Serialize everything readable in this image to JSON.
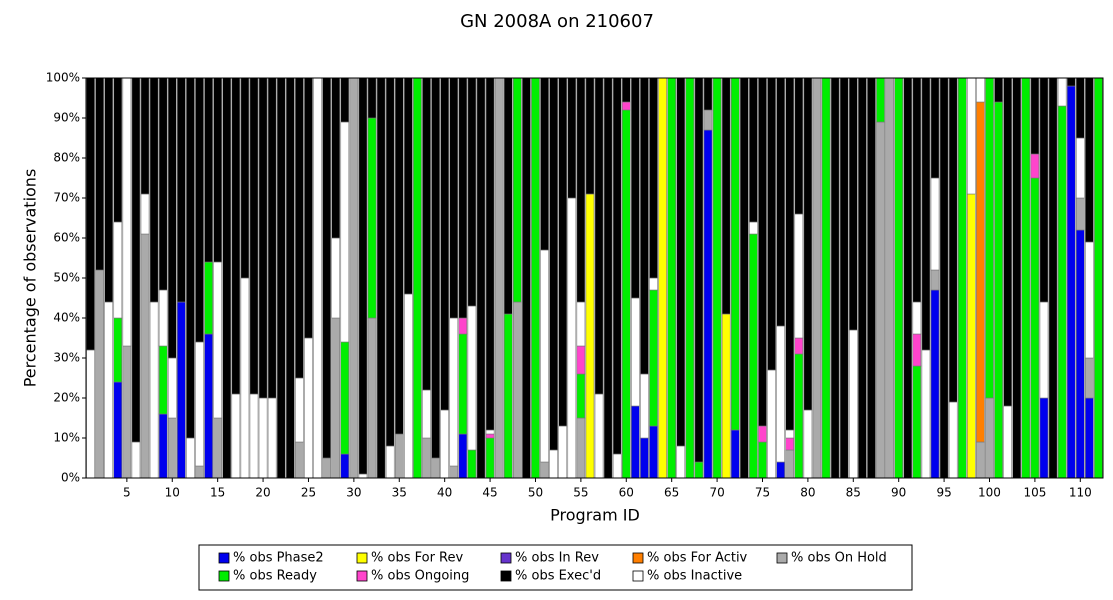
{
  "chart_data": {
    "type": "stacked_bar",
    "title": "GN 2008A on 210607",
    "x_label": "Program ID",
    "y_label": "Percentage of observations",
    "x": [
      1,
      2,
      3,
      4,
      5,
      6,
      7,
      8,
      9,
      10,
      11,
      12,
      13,
      14,
      15,
      16,
      17,
      18,
      19,
      20,
      21,
      22,
      23,
      24,
      25,
      26,
      27,
      28,
      29,
      30,
      31,
      32,
      33,
      34,
      35,
      36,
      37,
      38,
      39,
      40,
      41,
      42,
      43,
      44,
      45,
      46,
      47,
      48,
      49,
      50,
      51,
      52,
      53,
      54,
      55,
      56,
      57,
      58,
      59,
      60,
      61,
      62,
      63,
      64,
      65,
      66,
      67,
      68,
      69,
      70,
      71,
      72,
      73,
      74,
      75,
      76,
      77,
      78,
      79,
      80,
      81,
      82,
      83,
      84,
      85,
      86,
      87,
      88,
      89,
      90,
      91,
      92,
      93,
      94,
      95,
      96,
      97,
      98,
      99,
      100,
      101,
      102,
      103,
      104,
      105,
      106,
      107,
      108,
      109,
      110,
      111,
      112
    ],
    "xlim": [
      0.5,
      112.5
    ],
    "xticks": [
      5,
      10,
      15,
      20,
      25,
      30,
      35,
      40,
      45,
      50,
      55,
      60,
      65,
      70,
      75,
      80,
      85,
      90,
      95,
      100,
      105,
      110
    ],
    "ylim": [
      0,
      100
    ],
    "yticks": [
      {
        "value": 0,
        "label": "0%"
      },
      {
        "value": 10,
        "label": "10%"
      },
      {
        "value": 20,
        "label": "20%"
      },
      {
        "value": 30,
        "label": "30%"
      },
      {
        "value": 40,
        "label": "40%"
      },
      {
        "value": 50,
        "label": "50%"
      },
      {
        "value": 60,
        "label": "60%"
      },
      {
        "value": 70,
        "label": "70%"
      },
      {
        "value": 80,
        "label": "80%"
      },
      {
        "value": 90,
        "label": "90%"
      },
      {
        "value": 100,
        "label": "100%"
      }
    ],
    "series": [
      {
        "name": "% obs Phase2",
        "color": "#0000ee",
        "values": [
          0,
          0,
          0,
          24,
          0,
          0,
          0,
          0,
          16,
          0,
          44,
          0,
          0,
          36,
          0,
          0,
          0,
          0,
          0,
          0,
          0,
          0,
          0,
          0,
          0,
          0,
          0,
          0,
          6,
          0,
          0,
          0,
          0,
          0,
          0,
          0,
          0,
          0,
          0,
          0,
          0,
          11,
          0,
          0,
          0,
          0,
          0,
          0,
          0,
          0,
          0,
          0,
          0,
          0,
          0,
          0,
          0,
          0,
          0,
          0,
          18,
          10,
          13,
          0,
          0,
          0,
          0,
          0,
          87,
          0,
          0,
          12,
          0,
          0,
          0,
          0,
          4,
          0,
          0,
          0,
          0,
          0,
          0,
          0,
          0,
          0,
          0,
          0,
          0,
          0,
          0,
          0,
          0,
          47,
          0,
          0,
          0,
          0,
          0,
          0,
          0,
          0,
          0,
          0,
          0,
          20,
          0,
          0,
          98,
          62,
          20,
          0
        ]
      },
      {
        "name": "% obs Ready",
        "color": "#00ee00",
        "values": [
          0,
          0,
          0,
          16,
          0,
          0,
          0,
          0,
          17,
          0,
          0,
          0,
          0,
          18,
          0,
          0,
          0,
          0,
          0,
          0,
          0,
          0,
          0,
          0,
          0,
          0,
          0,
          0,
          28,
          0,
          0,
          50,
          0,
          0,
          0,
          0,
          100,
          0,
          0,
          0,
          0,
          25,
          7,
          0,
          10,
          0,
          41,
          56,
          0,
          100,
          0,
          0,
          0,
          0,
          11,
          0,
          0,
          0,
          0,
          92,
          0,
          0,
          34,
          0,
          100,
          0,
          100,
          4,
          0,
          100,
          0,
          88,
          0,
          61,
          9,
          0,
          0,
          0,
          31,
          0,
          0,
          100,
          0,
          0,
          0,
          0,
          0,
          11,
          0,
          100,
          0,
          28,
          0,
          0,
          0,
          0,
          100,
          0,
          0,
          80,
          94,
          0,
          0,
          100,
          75,
          0,
          0,
          93,
          0,
          0,
          0,
          100
        ]
      },
      {
        "name": "% obs For Rev",
        "color": "#ffff00",
        "values": [
          0,
          0,
          0,
          0,
          0,
          0,
          0,
          0,
          0,
          0,
          0,
          0,
          0,
          0,
          0,
          0,
          0,
          0,
          0,
          0,
          0,
          0,
          0,
          0,
          0,
          0,
          0,
          0,
          0,
          0,
          0,
          0,
          0,
          0,
          0,
          0,
          0,
          0,
          0,
          0,
          0,
          0,
          0,
          0,
          0,
          0,
          0,
          0,
          0,
          0,
          0,
          0,
          0,
          0,
          0,
          71,
          0,
          0,
          0,
          0,
          0,
          0,
          0,
          100,
          0,
          0,
          0,
          0,
          0,
          0,
          41,
          0,
          0,
          0,
          0,
          0,
          0,
          0,
          0,
          0,
          0,
          0,
          0,
          0,
          0,
          0,
          0,
          0,
          0,
          0,
          0,
          0,
          0,
          0,
          0,
          0,
          0,
          71,
          0,
          0,
          0,
          0,
          0,
          0,
          0,
          0,
          0,
          0,
          0,
          0,
          0,
          0
        ]
      },
      {
        "name": "% obs Ongoing",
        "color": "#ff44cc",
        "values": [
          0,
          0,
          0,
          0,
          0,
          0,
          0,
          0,
          0,
          0,
          0,
          0,
          0,
          0,
          0,
          0,
          0,
          0,
          0,
          0,
          0,
          0,
          0,
          0,
          0,
          0,
          0,
          0,
          0,
          0,
          0,
          0,
          0,
          0,
          0,
          0,
          0,
          0,
          0,
          0,
          0,
          4,
          0,
          0,
          1,
          0,
          0,
          0,
          0,
          0,
          0,
          0,
          0,
          0,
          7,
          0,
          0,
          0,
          0,
          2,
          0,
          0,
          0,
          0,
          0,
          0,
          0,
          0,
          0,
          0,
          0,
          0,
          0,
          0,
          4,
          0,
          0,
          3,
          4,
          0,
          0,
          0,
          0,
          0,
          0,
          0,
          0,
          0,
          0,
          0,
          0,
          8,
          0,
          0,
          0,
          0,
          0,
          0,
          0,
          0,
          0,
          0,
          0,
          0,
          6,
          0,
          0,
          0,
          0,
          0,
          0,
          0
        ]
      },
      {
        "name": "% obs In Rev",
        "color": "#6633cc",
        "values": [
          0,
          0,
          0,
          0,
          0,
          0,
          0,
          0,
          0,
          0,
          0,
          0,
          0,
          0,
          0,
          0,
          0,
          0,
          0,
          0,
          0,
          0,
          0,
          0,
          0,
          0,
          0,
          0,
          0,
          0,
          0,
          0,
          0,
          0,
          0,
          0,
          0,
          0,
          0,
          0,
          0,
          0,
          0,
          0,
          0,
          0,
          0,
          0,
          0,
          0,
          0,
          0,
          0,
          0,
          0,
          0,
          0,
          0,
          0,
          0,
          0,
          0,
          0,
          0,
          0,
          0,
          0,
          0,
          0,
          0,
          0,
          0,
          0,
          0,
          0,
          0,
          0,
          0,
          0,
          0,
          0,
          0,
          0,
          0,
          0,
          0,
          0,
          0,
          0,
          0,
          0,
          0,
          0,
          0,
          0,
          0,
          0,
          0,
          0,
          0,
          0,
          0,
          0,
          0,
          0,
          0,
          0,
          0,
          0,
          0,
          0,
          0
        ]
      },
      {
        "name": "% obs Exec'd",
        "color": "#000000",
        "values": [
          68,
          48,
          56,
          36,
          0,
          91,
          29,
          56,
          53,
          70,
          56,
          90,
          66,
          46,
          46,
          100,
          79,
          50,
          79,
          80,
          80,
          100,
          100,
          75,
          65,
          0,
          95,
          40,
          11,
          0,
          99,
          10,
          100,
          92,
          89,
          54,
          0,
          78,
          95,
          83,
          60,
          60,
          57,
          100,
          88,
          0,
          59,
          0,
          100,
          0,
          43,
          93,
          87,
          30,
          56,
          29,
          79,
          100,
          94,
          6,
          55,
          74,
          50,
          0,
          0,
          92,
          0,
          96,
          8,
          0,
          59,
          0,
          100,
          36,
          87,
          73,
          62,
          88,
          34,
          83,
          0,
          0,
          100,
          100,
          63,
          100,
          100,
          0,
          0,
          0,
          100,
          56,
          68,
          25,
          100,
          81,
          0,
          0,
          0,
          0,
          6,
          82,
          100,
          0,
          19,
          56,
          100,
          0,
          2,
          15,
          41,
          0
        ]
      },
      {
        "name": "% obs For Activ",
        "color": "#ff7f00",
        "values": [
          0,
          0,
          0,
          0,
          0,
          0,
          0,
          0,
          0,
          0,
          0,
          0,
          0,
          0,
          0,
          0,
          0,
          0,
          0,
          0,
          0,
          0,
          0,
          0,
          0,
          0,
          0,
          0,
          0,
          0,
          0,
          0,
          0,
          0,
          0,
          0,
          0,
          0,
          0,
          0,
          0,
          0,
          0,
          0,
          0,
          0,
          0,
          0,
          0,
          0,
          0,
          0,
          0,
          0,
          0,
          0,
          0,
          0,
          0,
          0,
          0,
          0,
          0,
          0,
          0,
          0,
          0,
          0,
          0,
          0,
          0,
          0,
          0,
          0,
          0,
          0,
          0,
          0,
          0,
          0,
          0,
          0,
          0,
          0,
          0,
          0,
          0,
          0,
          0,
          0,
          0,
          0,
          0,
          0,
          0,
          0,
          0,
          0,
          85,
          0,
          0,
          0,
          0,
          0,
          0,
          0,
          0,
          0,
          0,
          0,
          0,
          0
        ]
      },
      {
        "name": "% obs Inactive",
        "color": "#ffffff",
        "values": [
          32,
          0,
          44,
          24,
          67,
          9,
          10,
          44,
          14,
          15,
          0,
          10,
          31,
          0,
          39,
          0,
          21,
          50,
          21,
          20,
          20,
          0,
          0,
          16,
          35,
          100,
          0,
          20,
          55,
          0,
          1,
          0,
          0,
          8,
          0,
          46,
          0,
          12,
          0,
          17,
          37,
          0,
          36,
          0,
          1,
          0,
          0,
          0,
          0,
          0,
          53,
          7,
          13,
          70,
          11,
          0,
          21,
          0,
          6,
          0,
          27,
          16,
          3,
          0,
          0,
          8,
          0,
          0,
          0,
          0,
          0,
          0,
          0,
          3,
          0,
          27,
          34,
          2,
          31,
          17,
          0,
          0,
          0,
          0,
          37,
          0,
          0,
          0,
          0,
          0,
          0,
          8,
          32,
          23,
          0,
          19,
          0,
          29,
          6,
          0,
          0,
          18,
          0,
          0,
          0,
          24,
          0,
          7,
          0,
          15,
          29,
          0
        ]
      },
      {
        "name": "% obs On Hold",
        "color": "#aaaaaa",
        "values": [
          0,
          52,
          0,
          0,
          33,
          0,
          61,
          0,
          0,
          15,
          0,
          0,
          3,
          0,
          15,
          0,
          0,
          0,
          0,
          0,
          0,
          0,
          0,
          9,
          0,
          0,
          5,
          40,
          0,
          100,
          0,
          40,
          0,
          0,
          11,
          0,
          0,
          10,
          5,
          0,
          3,
          0,
          0,
          0,
          0,
          100,
          0,
          44,
          0,
          0,
          4,
          0,
          0,
          0,
          15,
          0,
          0,
          0,
          0,
          0,
          0,
          0,
          0,
          0,
          0,
          0,
          0,
          0,
          5,
          0,
          0,
          0,
          0,
          0,
          0,
          0,
          0,
          7,
          0,
          0,
          100,
          0,
          0,
          0,
          0,
          0,
          0,
          89,
          100,
          0,
          0,
          0,
          0,
          5,
          0,
          0,
          0,
          0,
          9,
          20,
          0,
          0,
          0,
          0,
          0,
          0,
          0,
          0,
          0,
          8,
          10,
          0
        ]
      }
    ]
  }
}
